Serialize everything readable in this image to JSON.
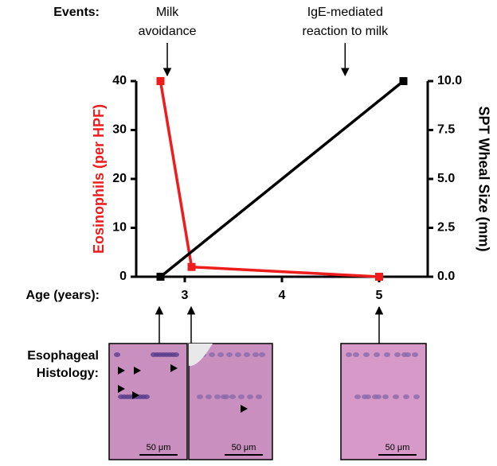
{
  "chart_data": {
    "type": "line",
    "xlabel": "Age (years):",
    "xlim": [
      2.5,
      5.5
    ],
    "xticks": [
      3,
      4,
      5
    ],
    "ylim": [
      0,
      40
    ],
    "yticks": [
      0,
      10,
      20,
      30,
      40
    ],
    "y2lim": [
      0,
      10
    ],
    "y2ticks": [
      {
        "value": 0,
        "label": "0.0"
      },
      {
        "value": 2.5,
        "label": "2.5"
      },
      {
        "value": 5,
        "label": "5.0"
      },
      {
        "value": 7.5,
        "label": "7.5"
      },
      {
        "value": 10,
        "label": "10.0"
      }
    ],
    "series": [
      {
        "name": "Eosinophils (per HPF)",
        "color": "#ee1c1c",
        "x": [
          2.75,
          3.07,
          5
        ],
        "values": [
          40,
          2,
          0
        ]
      },
      {
        "name": "SPT Wheal Size (mm)",
        "color": "#000000",
        "axis": "y2",
        "x": [
          2.75,
          5.25
        ],
        "values": [
          0,
          10
        ]
      }
    ],
    "events_label": "Events:",
    "annotations": [
      {
        "lines": [
          "Milk",
          "avoidance"
        ],
        "x": 2.82
      },
      {
        "lines": [
          "IgE-mediated",
          "reaction to milk"
        ],
        "x": 4.65
      }
    ],
    "histology": {
      "label_lines": [
        "Esophageal",
        "Histology:"
      ],
      "panels": [
        {
          "scale_bar": "50 μm"
        },
        {
          "scale_bar": "50 μm"
        },
        {
          "scale_bar": "50 μm"
        }
      ]
    }
  }
}
